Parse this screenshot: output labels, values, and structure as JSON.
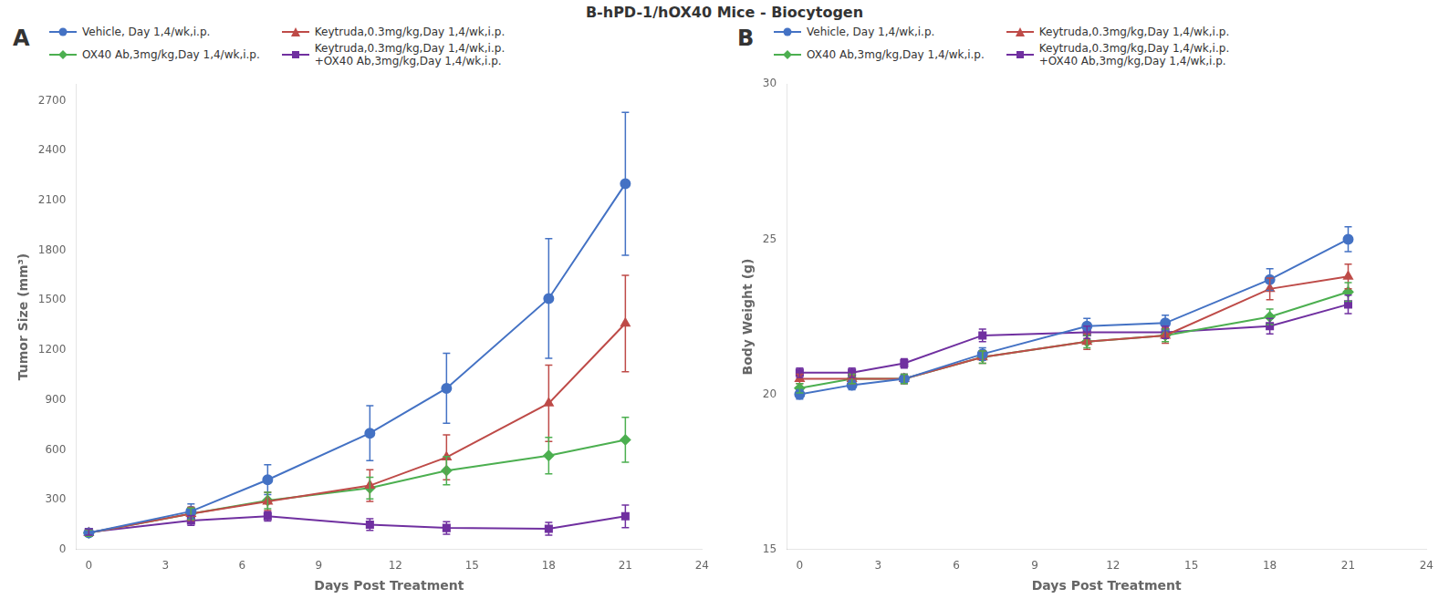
{
  "title": "B-hPD-1/hOX40 Mice - Biocytogen",
  "chart_data": [
    {
      "type": "line",
      "title": "A",
      "x_label": "Days Post Treatment",
      "y_label": "Tumor Size (mm³)",
      "xlim": [
        -0.5,
        24
      ],
      "ylim": [
        0,
        2800
      ],
      "xticks": [
        0,
        3,
        6,
        9,
        12,
        15,
        18,
        21,
        24
      ],
      "yticks": [
        0,
        300,
        600,
        900,
        1200,
        1500,
        1800,
        2100,
        2400,
        2700
      ],
      "grid": false,
      "legend": "upper left",
      "series": [
        {
          "name": "Vehicle, Day 1,4/wk,i.p.",
          "color": "#4472C4",
          "marker": "circle",
          "x": [
            0,
            4,
            7,
            11,
            14,
            18,
            21
          ],
          "values": [
            100,
            230,
            420,
            700,
            970,
            1510,
            2200
          ],
          "yerr": [
            20,
            45,
            90,
            165,
            210,
            360,
            430
          ]
        },
        {
          "name": "Keytruda,0.3mg/kg,Day 1,4/wk,i.p.",
          "color": "#BE4B48",
          "marker": "triangle",
          "x": [
            0,
            4,
            7,
            11,
            14,
            18,
            21
          ],
          "values": [
            100,
            215,
            290,
            385,
            555,
            880,
            1360
          ],
          "yerr": [
            20,
            40,
            55,
            95,
            135,
            230,
            290
          ]
        },
        {
          "name": "OX40 Ab,3mg/kg,Day 1,4/wk,i.p.",
          "color": "#4CAF50",
          "marker": "diamond",
          "x": [
            0,
            4,
            7,
            11,
            14,
            18,
            21
          ],
          "values": [
            100,
            215,
            295,
            370,
            475,
            565,
            660
          ],
          "yerr": [
            20,
            35,
            50,
            65,
            85,
            110,
            135
          ]
        },
        {
          "name": "Keytruda,0.3mg/kg,Day 1,4/wk,i.p.\n+OX40 Ab,3mg/kg,Day 1,4/wk,i.p.",
          "color": "#7030A0",
          "marker": "square",
          "x": [
            0,
            4,
            7,
            11,
            14,
            18,
            21
          ],
          "values": [
            105,
            175,
            200,
            150,
            130,
            125,
            200
          ],
          "yerr": [
            18,
            30,
            28,
            35,
            38,
            38,
            68
          ]
        }
      ]
    },
    {
      "type": "line",
      "title": "B",
      "x_label": "Days Post Treatment",
      "y_label": "Body Weight (g)",
      "xlim": [
        -0.5,
        24
      ],
      "ylim": [
        15,
        30
      ],
      "xticks": [
        0,
        3,
        6,
        9,
        12,
        15,
        18,
        21,
        24
      ],
      "yticks": [
        15,
        20,
        25,
        30
      ],
      "grid": false,
      "legend": "upper left",
      "series": [
        {
          "name": "Vehicle, Day 1,4/wk,i.p.",
          "color": "#4472C4",
          "marker": "circle",
          "x": [
            0,
            2,
            4,
            7,
            11,
            14,
            18,
            21
          ],
          "values": [
            20.0,
            20.3,
            20.5,
            21.3,
            22.2,
            22.3,
            23.7,
            25.0
          ],
          "yerr": [
            0.15,
            0.15,
            0.15,
            0.2,
            0.25,
            0.25,
            0.35,
            0.4
          ]
        },
        {
          "name": "Keytruda,0.3mg/kg,Day 1,4/wk,i.p.",
          "color": "#BE4B48",
          "marker": "triangle",
          "x": [
            0,
            2,
            4,
            7,
            11,
            14,
            18,
            21
          ],
          "values": [
            20.5,
            20.5,
            20.5,
            21.2,
            21.7,
            21.9,
            23.4,
            23.8
          ],
          "yerr": [
            0.15,
            0.15,
            0.15,
            0.2,
            0.25,
            0.25,
            0.35,
            0.4
          ]
        },
        {
          "name": "OX40 Ab,3mg/kg,Day 1,4/wk,i.p.",
          "color": "#4CAF50",
          "marker": "diamond",
          "x": [
            0,
            2,
            4,
            7,
            11,
            14,
            18,
            21
          ],
          "values": [
            20.2,
            20.5,
            20.5,
            21.2,
            21.7,
            21.9,
            22.5,
            23.3
          ],
          "yerr": [
            0.15,
            0.15,
            0.15,
            0.2,
            0.2,
            0.2,
            0.25,
            0.3
          ]
        },
        {
          "name": "Keytruda,0.3mg/kg,Day 1,4/wk,i.p.\n+OX40 Ab,3mg/kg,Day 1,4/wk,i.p.",
          "color": "#7030A0",
          "marker": "square",
          "x": [
            0,
            2,
            4,
            7,
            11,
            14,
            18,
            21
          ],
          "values": [
            20.7,
            20.7,
            21.0,
            21.9,
            22.0,
            22.0,
            22.2,
            22.9
          ],
          "yerr": [
            0.15,
            0.15,
            0.15,
            0.2,
            0.2,
            0.2,
            0.25,
            0.3
          ]
        }
      ]
    }
  ]
}
